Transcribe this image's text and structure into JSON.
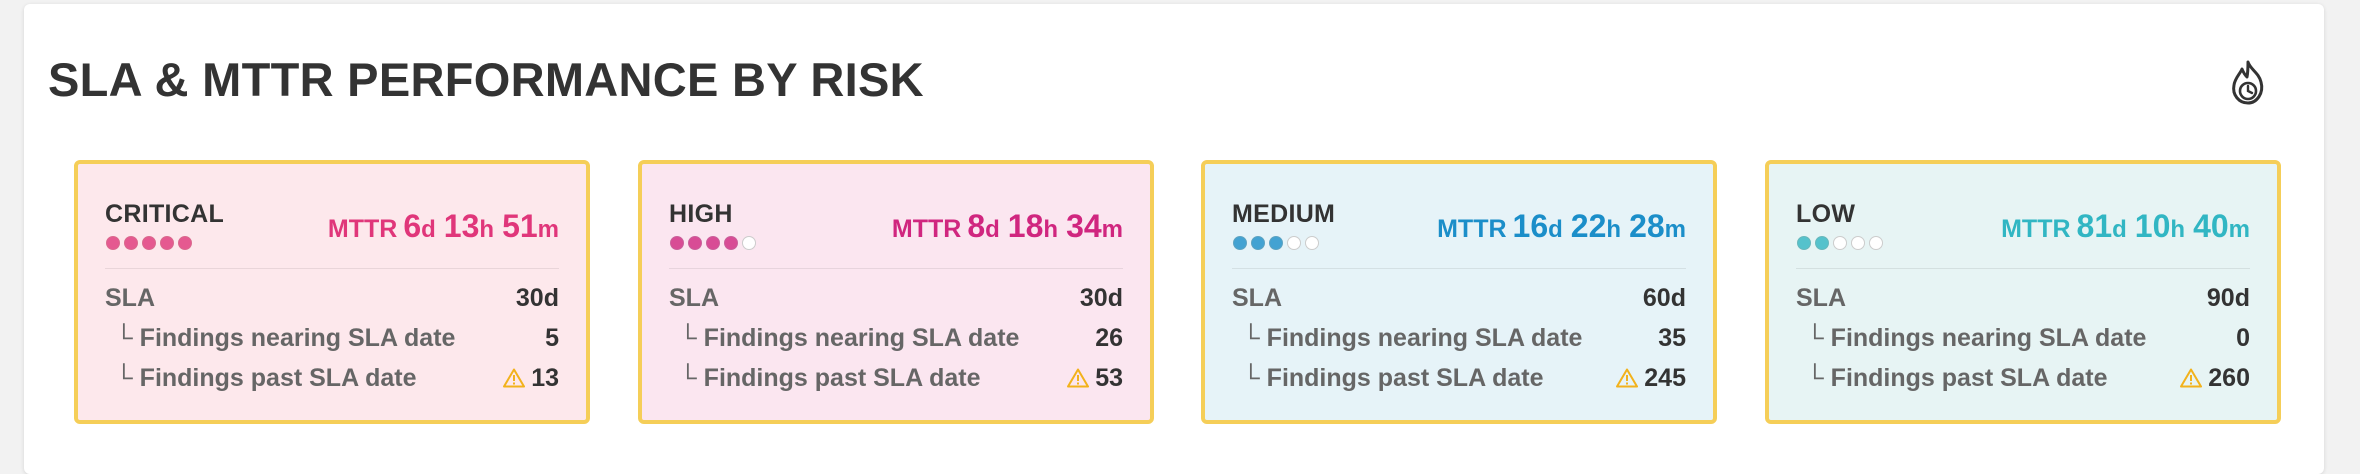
{
  "title": "SLA & MTTR PERFORMANCE BY RISK",
  "header_icon": "flame-clock-icon",
  "cards": [
    {
      "risk": "CRITICAL",
      "level": 5,
      "max_level": 5,
      "mttr_label": "MTTR",
      "mttr_days": "6",
      "mttr_hours": "13",
      "mttr_minutes": "51",
      "unit_d": "d",
      "unit_h": "h",
      "unit_m": "m",
      "sla_label": "SLA",
      "sla_value": "30d",
      "nearing_label": "Findings nearing SLA date",
      "nearing_value": "5",
      "past_label": "Findings past SLA date",
      "past_value": "13",
      "bg": "#fde8ec",
      "accent": "#e0367a",
      "dot_border": "#d14a76"
    },
    {
      "risk": "HIGH",
      "level": 4,
      "max_level": 5,
      "mttr_label": "MTTR",
      "mttr_days": "8",
      "mttr_hours": "18",
      "mttr_minutes": "34",
      "unit_d": "d",
      "unit_h": "h",
      "unit_m": "m",
      "sla_label": "SLA",
      "sla_value": "30d",
      "nearing_label": "Findings nearing SLA date",
      "nearing_value": "26",
      "past_label": "Findings past SLA date",
      "past_value": "53",
      "bg": "#fbe6f0",
      "accent": "#d0267f",
      "dot_border": "#bd3f85"
    },
    {
      "risk": "MEDIUM",
      "level": 3,
      "max_level": 5,
      "mttr_label": "MTTR",
      "mttr_days": "16",
      "mttr_hours": "22",
      "mttr_minutes": "28",
      "unit_d": "d",
      "unit_h": "h",
      "unit_m": "m",
      "sla_label": "SLA",
      "sla_value": "60d",
      "nearing_label": "Findings nearing SLA date",
      "nearing_value": "35",
      "past_label": "Findings past SLA date",
      "past_value": "245",
      "bg": "#e6f3f8",
      "accent": "#1b8ec9",
      "dot_border": "#3b8fb4"
    },
    {
      "risk": "LOW",
      "level": 2,
      "max_level": 5,
      "mttr_label": "MTTR",
      "mttr_days": "81",
      "mttr_hours": "10",
      "mttr_minutes": "40",
      "unit_d": "d",
      "unit_h": "h",
      "unit_m": "m",
      "sla_label": "SLA",
      "sla_value": "90d",
      "nearing_label": "Findings nearing SLA date",
      "nearing_value": "0",
      "past_label": "Findings past SLA date",
      "past_value": "260",
      "bg": "#e7f4f4",
      "accent": "#31b6c3",
      "dot_border": "#4aa8ad"
    }
  ],
  "warning_icon": "warning-triangle-icon",
  "warning_color": "#f2b21c"
}
